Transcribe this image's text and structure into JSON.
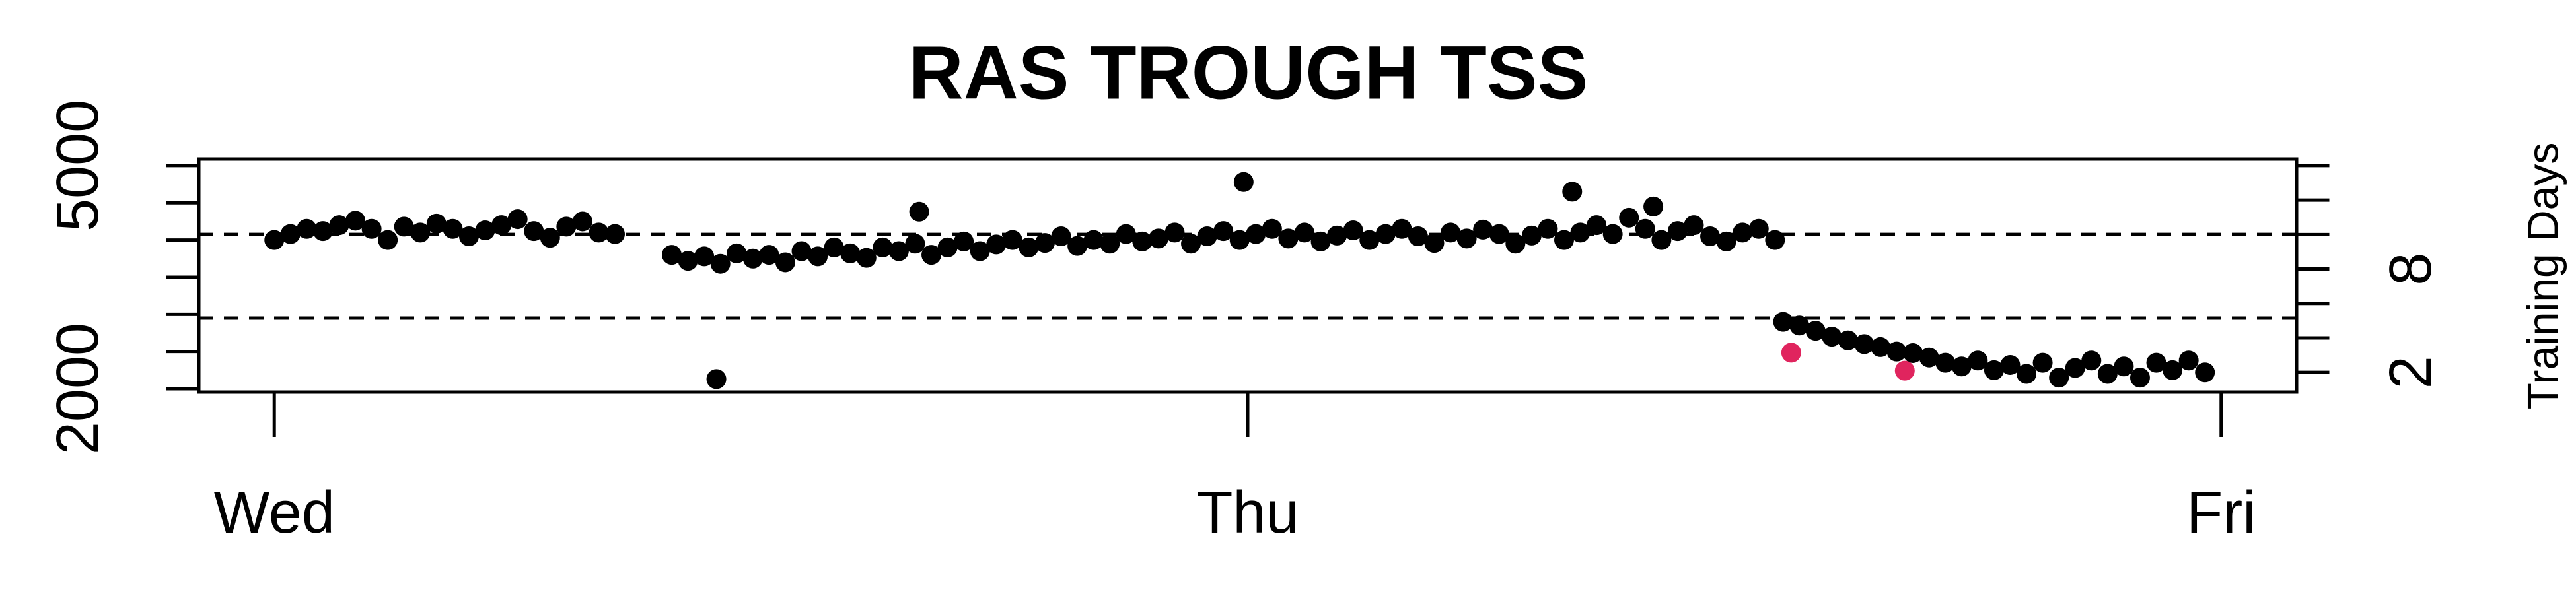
{
  "chart_data": {
    "type": "scatter",
    "title": "RAS TROUGH TSS",
    "y2label": "Training Days",
    "xlim": [
      -1.86,
      49.86
    ],
    "xticks": [
      {
        "value": 0,
        "label": "Wed"
      },
      {
        "value": 24,
        "label": "Thu"
      },
      {
        "value": 48,
        "label": "Fri"
      }
    ],
    "ylim": [
      1956,
      5088
    ],
    "yticks": [
      2000,
      5000
    ],
    "yminorticks": [
      2500,
      3000,
      3500,
      4000,
      4500
    ],
    "y2lim": [
      0.857,
      14.38
    ],
    "y2ticks": [
      2,
      8
    ],
    "y2minorticks": [
      4,
      6,
      10,
      12,
      14
    ],
    "hlines": [
      4075,
      2950
    ],
    "hline_style": "dashed",
    "series": [
      {
        "color": "#000000",
        "x": [
          0,
          0.4,
          0.8,
          1.2,
          1.6,
          2,
          2.4,
          2.8,
          3.2,
          3.6,
          4,
          4.4,
          4.8,
          5.2,
          5.6,
          6,
          6.4,
          6.8,
          7.2,
          7.6,
          8,
          8.4,
          9.8,
          10.2,
          10.6,
          11,
          11.4,
          11.8,
          12.2,
          12.6,
          13,
          13.4,
          13.8,
          14.2,
          14.6,
          15,
          15.4,
          15.8,
          16.2,
          16.6,
          17,
          17.4,
          17.8,
          18.2,
          18.6,
          19,
          19.4,
          19.8,
          20.2,
          20.6,
          21,
          21.4,
          21.8,
          22.2,
          22.6,
          23,
          23.4,
          23.8,
          24.2,
          24.6,
          25,
          25.4,
          25.8,
          26.2,
          26.6,
          27,
          27.4,
          27.8,
          28.2,
          28.6,
          29,
          29.4,
          29.8,
          30.2,
          30.6,
          31,
          31.4,
          31.8,
          32.2,
          32.6,
          33,
          33.4,
          33.8,
          34.2,
          34.6,
          35,
          35.4,
          35.8,
          36.2,
          36.6,
          37,
          10.9,
          15.9,
          23.9,
          32,
          34,
          37.2,
          37.6,
          38,
          38.4,
          38.8,
          39.2,
          39.6,
          40,
          40.4,
          40.8,
          41.2,
          41.6,
          42,
          42.4,
          42.8,
          43.2,
          43.6,
          44,
          44.4,
          44.8,
          45.2,
          45.6,
          46,
          46.4,
          46.8,
          47.2,
          47.6
        ],
        "values": [
          4000,
          4080,
          4150,
          4120,
          4200,
          4260,
          4150,
          4000,
          4180,
          4100,
          4220,
          4150,
          4050,
          4130,
          4200,
          4280,
          4120,
          4030,
          4180,
          4250,
          4100,
          4080,
          3800,
          3720,
          3780,
          3680,
          3820,
          3750,
          3800,
          3700,
          3850,
          3780,
          3900,
          3820,
          3760,
          3900,
          3850,
          3950,
          3800,
          3900,
          3980,
          3850,
          3940,
          4000,
          3900,
          3960,
          4050,
          3920,
          4000,
          3950,
          4080,
          3980,
          4020,
          4100,
          3950,
          4050,
          4120,
          4000,
          4080,
          4150,
          4020,
          4100,
          3980,
          4060,
          4130,
          4000,
          4080,
          4150,
          4050,
          3960,
          4100,
          4020,
          4140,
          4080,
          3950,
          4060,
          4150,
          4000,
          4100,
          4200,
          4080,
          4300,
          4150,
          4000,
          4120,
          4200,
          4050,
          3980,
          4100,
          4150,
          4000,
          2130,
          4380,
          4780,
          4650,
          4450,
          2900,
          2850,
          2780,
          2700,
          2650,
          2600,
          2560,
          2500,
          2480,
          2420,
          2350,
          2300,
          2380,
          2250,
          2320,
          2200,
          2350,
          2150,
          2280,
          2380,
          2200,
          2300,
          2150,
          2350,
          2250,
          2380,
          2220
        ]
      },
      {
        "color": "#e0245e",
        "x": [
          37.4,
          40.2
        ],
        "values": [
          2485,
          2243
        ]
      }
    ]
  }
}
